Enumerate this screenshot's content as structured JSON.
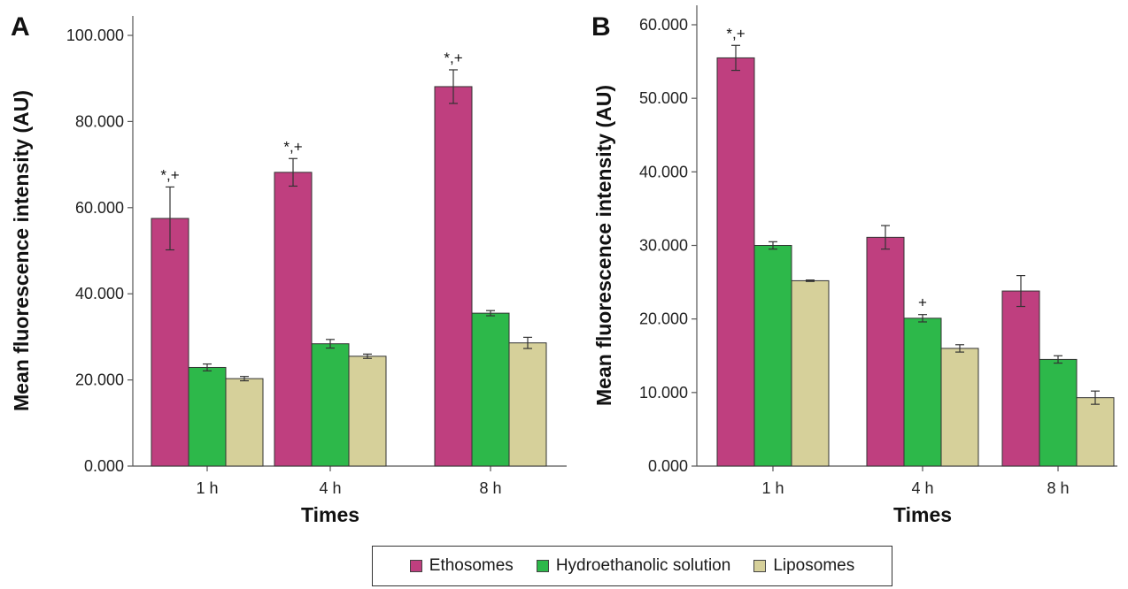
{
  "chart_data": [
    {
      "type": "bar",
      "panel_label": "A",
      "ylabel": "Mean fluorescence intensity (AU)",
      "xlabel": "Times",
      "categories": [
        "1 h",
        "4 h",
        "8 h"
      ],
      "ylim": [
        0,
        100
      ],
      "yticks": [
        "0.000",
        "20.000",
        "40.000",
        "60.000",
        "80.000",
        "100.000"
      ],
      "series": [
        {
          "name": "Ethosomes",
          "values": [
            57.5,
            68.2,
            88.1
          ],
          "errors": [
            7.3,
            3.2,
            3.9
          ]
        },
        {
          "name": "Hydroethanolic solution",
          "values": [
            22.9,
            28.4,
            35.5
          ],
          "errors": [
            0.8,
            1.0,
            0.6
          ]
        },
        {
          "name": "Liposomes",
          "values": [
            20.3,
            25.5,
            28.6
          ],
          "errors": [
            0.5,
            0.5,
            1.3
          ]
        }
      ],
      "annotations": [
        {
          "category": "1 h",
          "series": "Ethosomes",
          "text": "*,+"
        },
        {
          "category": "4 h",
          "series": "Ethosomes",
          "text": "*,+"
        },
        {
          "category": "8 h",
          "series": "Ethosomes",
          "text": "*,+"
        }
      ],
      "grid": false
    },
    {
      "type": "bar",
      "panel_label": "B",
      "ylabel": "Mean fluorescence intensity (AU)",
      "xlabel": "Times",
      "categories": [
        "1 h",
        "4 h",
        "8 h"
      ],
      "ylim": [
        0,
        60
      ],
      "yticks": [
        "0.000",
        "10.000",
        "20.000",
        "30.000",
        "40.000",
        "50.000",
        "60.000"
      ],
      "series": [
        {
          "name": "Ethosomes",
          "values": [
            55.5,
            31.1,
            23.8
          ],
          "errors": [
            1.7,
            1.6,
            2.1
          ]
        },
        {
          "name": "Hydroethanolic solution",
          "values": [
            30.0,
            20.1,
            14.5
          ],
          "errors": [
            0.5,
            0.5,
            0.5
          ]
        },
        {
          "name": "Liposomes",
          "values": [
            25.2,
            16.0,
            9.3
          ],
          "errors": [
            0.1,
            0.5,
            0.9
          ]
        }
      ],
      "annotations": [
        {
          "category": "1 h",
          "series": "Ethosomes",
          "text": "*,+"
        },
        {
          "category": "4 h",
          "series": "Hydroethanolic solution",
          "text": "+"
        }
      ],
      "grid": false
    }
  ],
  "legend": {
    "placement": "bottom-center",
    "items": [
      {
        "label": "Ethosomes",
        "color": "#bf3f7f"
      },
      {
        "label": "Hydroethanolic solution",
        "color": "#2db84a"
      },
      {
        "label": "Liposomes",
        "color": "#d6d09a"
      }
    ]
  },
  "colors": {
    "Ethosomes": "#bf3f7f",
    "Hydroethanolic solution": "#2db84a",
    "Liposomes": "#d6d09a"
  }
}
